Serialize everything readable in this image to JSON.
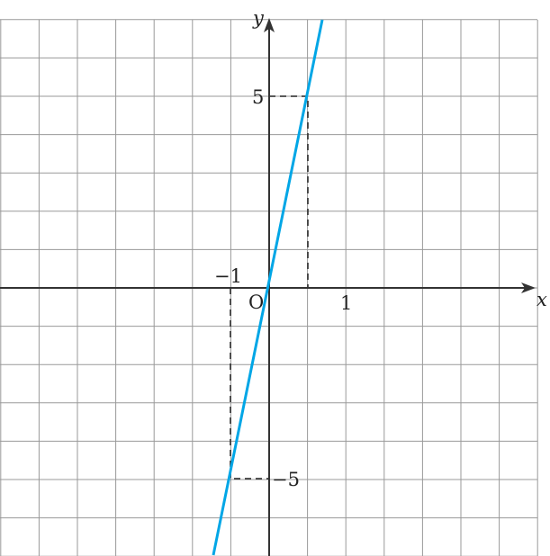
{
  "axes": {
    "x_label": "x",
    "y_label": "y",
    "origin_label": "O"
  },
  "tick_labels": {
    "x_pos": "1",
    "x_neg": "−1",
    "y_pos": "5",
    "y_neg": "−5"
  },
  "colors": {
    "line": "#00a6e6",
    "grid": "#999999",
    "axis": "#333333"
  },
  "line": {
    "equation_slope": 5,
    "points": [
      [
        1,
        5
      ],
      [
        -1,
        -5
      ]
    ]
  }
}
